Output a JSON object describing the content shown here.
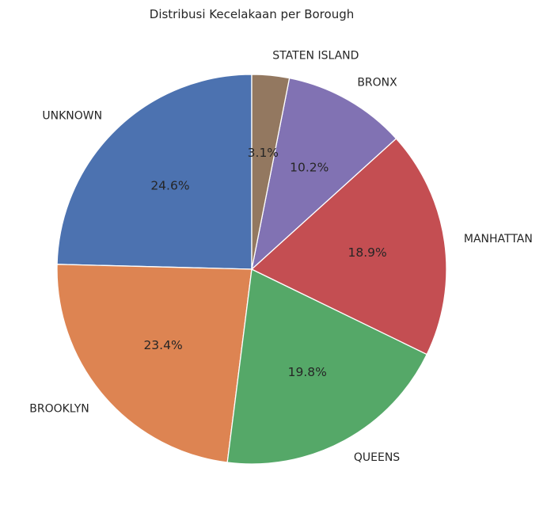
{
  "chart_data": {
    "type": "pie",
    "title": "Distribusi Kecelakaan per Borough",
    "start_angle": 90,
    "direction": "counterclockwise",
    "slices": [
      {
        "label": "UNKNOWN",
        "value": 24.6,
        "pct_text": "24.6%",
        "color": "#4c72b0"
      },
      {
        "label": "BROOKLYN",
        "value": 23.4,
        "pct_text": "23.4%",
        "color": "#dd8452"
      },
      {
        "label": "QUEENS",
        "value": 19.8,
        "pct_text": "19.8%",
        "color": "#55a868"
      },
      {
        "label": "MANHATTAN",
        "value": 18.9,
        "pct_text": "18.9%",
        "color": "#c44e52"
      },
      {
        "label": "BRONX",
        "value": 10.2,
        "pct_text": "10.2%",
        "color": "#8172b3"
      },
      {
        "label": "STATEN ISLAND",
        "value": 3.1,
        "pct_text": "3.1%",
        "color": "#937860"
      }
    ]
  }
}
